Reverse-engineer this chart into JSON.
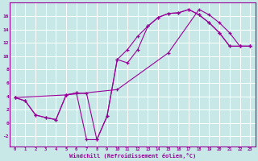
{
  "bg_color": "#c8e8e8",
  "line_color": "#990099",
  "grid_color": "#ffffff",
  "xlim": [
    -0.5,
    23.5
  ],
  "ylim": [
    -3.5,
    18
  ],
  "xticks": [
    0,
    1,
    2,
    3,
    4,
    5,
    6,
    7,
    8,
    9,
    10,
    11,
    12,
    13,
    14,
    15,
    16,
    17,
    18,
    19,
    20,
    21,
    22,
    23
  ],
  "yticks": [
    -2,
    0,
    2,
    4,
    6,
    8,
    10,
    12,
    14,
    16
  ],
  "xlabel": "Windchill (Refroidissement éolien,°C)",
  "lines": [
    [
      [
        0,
        3.8
      ],
      [
        1,
        3.3
      ],
      [
        2,
        1.2
      ],
      [
        3,
        0.8
      ],
      [
        4,
        0.5
      ],
      [
        5,
        4.2
      ],
      [
        6,
        4.5
      ],
      [
        7,
        4.4
      ],
      [
        8,
        -2.5
      ],
      [
        9,
        1.0
      ],
      [
        10,
        9.5
      ],
      [
        11,
        11.0
      ],
      [
        12,
        13.0
      ],
      [
        13,
        14.5
      ],
      [
        14,
        15.8
      ],
      [
        15,
        16.4
      ],
      [
        16,
        16.5
      ],
      [
        17,
        17.0
      ],
      [
        18,
        16.2
      ],
      [
        19,
        15.0
      ],
      [
        20,
        13.5
      ],
      [
        21,
        11.5
      ],
      [
        22,
        11.5
      ],
      [
        23,
        11.5
      ]
    ],
    [
      [
        0,
        3.8
      ],
      [
        1,
        3.3
      ],
      [
        2,
        1.2
      ],
      [
        3,
        0.8
      ],
      [
        4,
        0.5
      ],
      [
        5,
        4.2
      ],
      [
        6,
        4.5
      ],
      [
        7,
        -2.5
      ],
      [
        8,
        -2.5
      ],
      [
        9,
        1.0
      ],
      [
        10,
        9.5
      ],
      [
        11,
        9.0
      ],
      [
        12,
        11.0
      ],
      [
        13,
        14.5
      ],
      [
        14,
        15.8
      ],
      [
        15,
        16.4
      ],
      [
        16,
        16.5
      ],
      [
        17,
        17.0
      ],
      [
        18,
        16.2
      ],
      [
        19,
        15.0
      ],
      [
        20,
        13.5
      ],
      [
        21,
        11.5
      ],
      [
        22,
        11.5
      ],
      [
        23,
        11.5
      ]
    ],
    [
      [
        0,
        3.8
      ],
      [
        5,
        4.2
      ],
      [
        10,
        5.0
      ],
      [
        15,
        10.5
      ],
      [
        18,
        17.0
      ],
      [
        19,
        16.2
      ],
      [
        20,
        15.0
      ],
      [
        21,
        13.5
      ],
      [
        22,
        11.5
      ],
      [
        23,
        11.5
      ]
    ]
  ]
}
